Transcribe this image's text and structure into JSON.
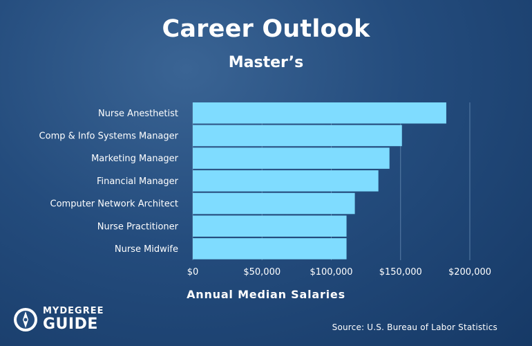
{
  "header": {
    "title": "Career Outlook",
    "subtitle": "Master’s"
  },
  "chart_data": {
    "type": "bar",
    "orientation": "horizontal",
    "categories": [
      "Nurse Anesthetist",
      "Comp & Info Systems Manager",
      "Marketing Manager",
      "Financial Manager",
      "Computer Network Architect",
      "Nurse Practitioner",
      "Nurse Midwife"
    ],
    "values": [
      183000,
      151000,
      142000,
      134000,
      117000,
      111000,
      111000
    ],
    "xlabel": "Annual Median Salaries",
    "xlim": [
      0,
      200000
    ],
    "xticks": [
      0,
      50000,
      100000,
      150000,
      200000
    ],
    "xtick_labels": [
      "$0",
      "$50,000",
      "$100,000",
      "$150,000",
      "$200,000"
    ],
    "grid": true,
    "bar_color": "#7fdcff",
    "grid_color": "#5a7fa8"
  },
  "footer": {
    "logo_top": "MYDEGREE",
    "logo_bottom": "GUIDE",
    "source": "Source: U.S. Bureau of Labor Statistics"
  }
}
